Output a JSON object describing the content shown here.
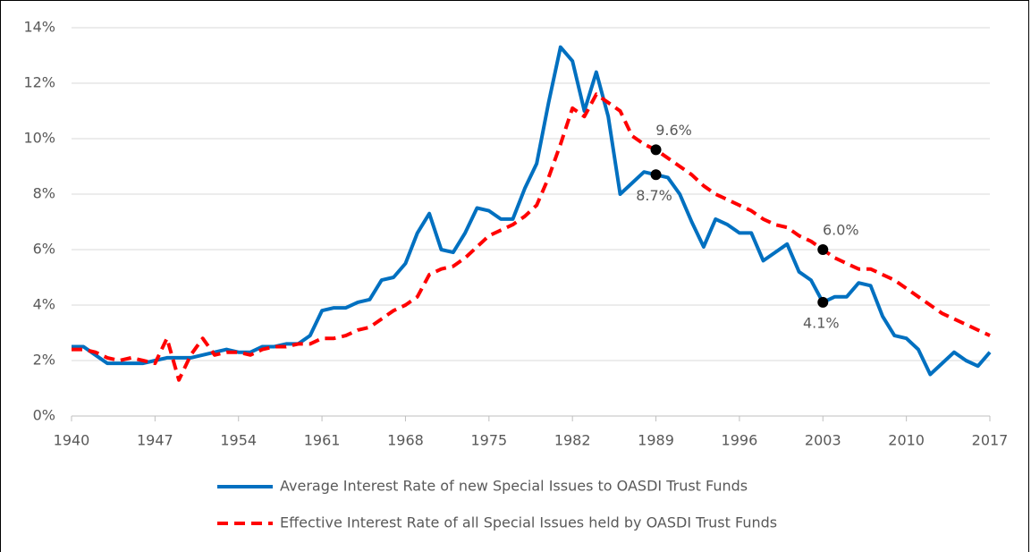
{
  "chart_data": {
    "type": "line",
    "x": [
      1940,
      1941,
      1942,
      1943,
      1944,
      1945,
      1946,
      1947,
      1948,
      1949,
      1950,
      1951,
      1952,
      1953,
      1954,
      1955,
      1956,
      1957,
      1958,
      1959,
      1960,
      1961,
      1962,
      1963,
      1964,
      1965,
      1966,
      1967,
      1968,
      1969,
      1970,
      1971,
      1972,
      1973,
      1974,
      1975,
      1976,
      1977,
      1978,
      1979,
      1980,
      1981,
      1982,
      1983,
      1984,
      1985,
      1986,
      1987,
      1988,
      1989,
      1990,
      1991,
      1992,
      1993,
      1994,
      1995,
      1996,
      1997,
      1998,
      1999,
      2000,
      2001,
      2002,
      2003,
      2004,
      2005,
      2006,
      2007,
      2008,
      2009,
      2010,
      2011,
      2012,
      2013,
      2014,
      2015,
      2016,
      2017
    ],
    "series": [
      {
        "name": "Average Interest Rate of new Special Issues to OASDI Trust Funds",
        "color": "#0070c0",
        "linestyle": "solid",
        "values": [
          2.5,
          2.5,
          2.2,
          1.9,
          1.9,
          1.9,
          1.9,
          2.0,
          2.1,
          2.1,
          2.1,
          2.2,
          2.3,
          2.4,
          2.3,
          2.3,
          2.5,
          2.5,
          2.6,
          2.6,
          2.9,
          3.8,
          3.9,
          3.9,
          4.1,
          4.2,
          4.9,
          5.0,
          5.5,
          6.6,
          7.3,
          6.0,
          5.9,
          6.6,
          7.5,
          7.4,
          7.1,
          7.1,
          8.2,
          9.1,
          11.3,
          13.3,
          12.8,
          11.0,
          12.4,
          10.8,
          8.0,
          8.4,
          8.8,
          8.7,
          8.6,
          8.0,
          7.0,
          6.1,
          7.1,
          6.9,
          6.6,
          6.6,
          5.6,
          5.9,
          6.2,
          5.2,
          4.9,
          4.1,
          4.3,
          4.3,
          4.8,
          4.7,
          3.6,
          2.9,
          2.8,
          2.4,
          1.5,
          1.9,
          2.3,
          2.0,
          1.8,
          2.3
        ],
        "value_labels": [
          null,
          null,
          null,
          null,
          null,
          null,
          null,
          null,
          null,
          null,
          null,
          null,
          null,
          null,
          null,
          null,
          null,
          null,
          null,
          null,
          null,
          null,
          null,
          null,
          null,
          null,
          null,
          null,
          null,
          null,
          null,
          null,
          null,
          null,
          null,
          null,
          null,
          null,
          null,
          null,
          null,
          null,
          null,
          null,
          null,
          null,
          null,
          null,
          null,
          "8.7%",
          null,
          null,
          null,
          null,
          null,
          null,
          null,
          null,
          null,
          null,
          null,
          null,
          null,
          "4.1%",
          null,
          null,
          null,
          null,
          null,
          null,
          null,
          null,
          null,
          null,
          null,
          null,
          null,
          null
        ]
      },
      {
        "name": "Effective Interest Rate of all Special Issues held by OASDI Trust Funds",
        "color": "#ff0000",
        "linestyle": "dashed",
        "values": [
          2.4,
          2.4,
          2.3,
          2.1,
          2.0,
          2.1,
          2.0,
          1.9,
          2.8,
          1.3,
          2.2,
          2.8,
          2.2,
          2.3,
          2.3,
          2.2,
          2.4,
          2.5,
          2.5,
          2.6,
          2.6,
          2.8,
          2.8,
          2.9,
          3.1,
          3.2,
          3.5,
          3.8,
          4.0,
          4.3,
          5.1,
          5.3,
          5.4,
          5.7,
          6.1,
          6.5,
          6.7,
          6.9,
          7.2,
          7.6,
          8.6,
          9.8,
          11.1,
          10.8,
          11.6,
          11.3,
          11.0,
          10.1,
          9.8,
          9.6,
          9.3,
          9.0,
          8.7,
          8.3,
          8.0,
          7.8,
          7.6,
          7.4,
          7.1,
          6.9,
          6.8,
          6.5,
          6.3,
          6.0,
          5.7,
          5.5,
          5.3,
          5.3,
          5.1,
          4.9,
          4.6,
          4.3,
          4.0,
          3.7,
          3.5,
          3.3,
          3.1,
          2.9
        ],
        "value_labels": [
          null,
          null,
          null,
          null,
          null,
          null,
          null,
          null,
          null,
          null,
          null,
          null,
          null,
          null,
          null,
          null,
          null,
          null,
          null,
          null,
          null,
          null,
          null,
          null,
          null,
          null,
          null,
          null,
          null,
          null,
          null,
          null,
          null,
          null,
          null,
          null,
          null,
          null,
          null,
          null,
          null,
          null,
          null,
          null,
          null,
          null,
          null,
          null,
          null,
          "9.6%",
          null,
          null,
          null,
          null,
          null,
          null,
          null,
          null,
          null,
          null,
          null,
          null,
          null,
          "6.0%",
          null,
          null,
          null,
          null,
          null,
          null,
          null,
          null,
          null,
          null,
          null,
          null,
          null,
          null
        ]
      }
    ],
    "xlim": [
      1940,
      2017
    ],
    "xticks": [
      1940,
      1947,
      1954,
      1961,
      1968,
      1975,
      1982,
      1989,
      1996,
      2003,
      2010,
      2017
    ],
    "ylim": [
      0,
      14
    ],
    "yticks": [
      {
        "value": 0,
        "label": "0%"
      },
      {
        "value": 2,
        "label": "2%"
      },
      {
        "value": 4,
        "label": "4%"
      },
      {
        "value": 6,
        "label": "6%"
      },
      {
        "value": 8,
        "label": "8%"
      },
      {
        "value": 10,
        "label": "10%"
      },
      {
        "value": 12,
        "label": "12%"
      },
      {
        "value": 14,
        "label": "14%"
      }
    ],
    "grid": true,
    "legend": "bottom"
  }
}
